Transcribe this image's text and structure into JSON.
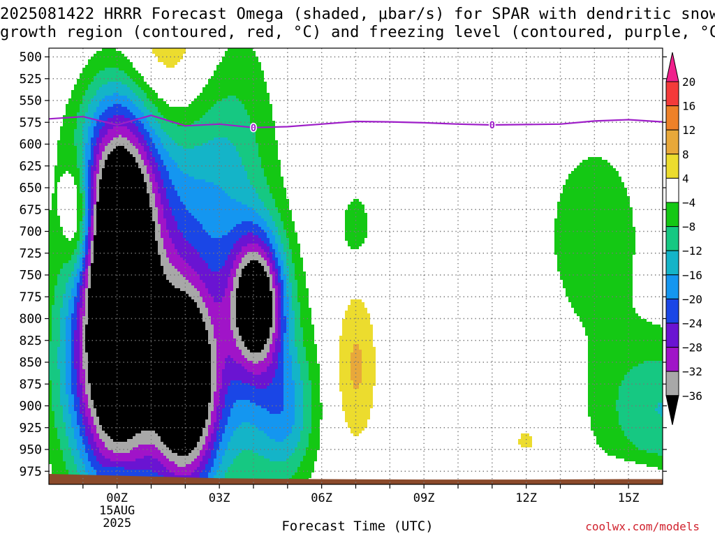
{
  "chart_data": {
    "type": "contour",
    "title": {
      "line1": "2025081422 HRRR Forecast Omega (shaded, μbar/s) for SPAR with dendritic snow",
      "line2": "growth region (contoured, red, °C) and freezing level (contoured, purple, °C)"
    },
    "xlabel": "Forecast Time (UTC)",
    "credit": "coolwx.com/models",
    "x_ticks": [
      {
        "hour": 0,
        "label": "00Z",
        "sub": [
          "15AUG",
          "2025"
        ]
      },
      {
        "hour": 3,
        "label": "03Z",
        "sub": []
      },
      {
        "hour": 6,
        "label": "06Z",
        "sub": []
      },
      {
        "hour": 9,
        "label": "09Z",
        "sub": []
      },
      {
        "hour": 12,
        "label": "12Z",
        "sub": []
      },
      {
        "hour": 15,
        "label": "15Z",
        "sub": []
      }
    ],
    "xlim": [
      -2,
      16
    ],
    "ylim": [
      990,
      490
    ],
    "y_ticks": [
      500,
      525,
      550,
      575,
      600,
      625,
      650,
      675,
      700,
      725,
      750,
      775,
      800,
      825,
      850,
      875,
      900,
      925,
      950,
      975
    ],
    "grid": true,
    "colorbar": {
      "labels": [
        "20",
        "16",
        "12",
        "8",
        "4",
        "−4",
        "−8",
        "−12",
        "−16",
        "−20",
        "−24",
        "−28",
        "−32",
        "−36"
      ],
      "levels": [
        {
          "lo": 20,
          "hi": 999,
          "color": "#f0208c",
          "arrow": "up"
        },
        {
          "lo": 16,
          "hi": 20,
          "color": "#f43a3a"
        },
        {
          "lo": 12,
          "hi": 16,
          "color": "#ee8128"
        },
        {
          "lo": 8,
          "hi": 12,
          "color": "#e8a83a"
        },
        {
          "lo": 4,
          "hi": 8,
          "color": "#ecdc2e"
        },
        {
          "lo": -4,
          "hi": 4,
          "color": "#ffffff"
        },
        {
          "lo": -8,
          "hi": -4,
          "color": "#14c814"
        },
        {
          "lo": -12,
          "hi": -8,
          "color": "#16c882"
        },
        {
          "lo": -16,
          "hi": -12,
          "color": "#14b4c8"
        },
        {
          "lo": -20,
          "hi": -16,
          "color": "#1496f0"
        },
        {
          "lo": -24,
          "hi": -20,
          "color": "#1a46e6"
        },
        {
          "lo": -28,
          "hi": -24,
          "color": "#6a14d2"
        },
        {
          "lo": -32,
          "hi": -28,
          "color": "#a014c8"
        },
        {
          "lo": -36,
          "hi": -32,
          "color": "#a8a8a8"
        },
        {
          "lo": -999,
          "hi": -36,
          "color": "#000000",
          "arrow": "down"
        }
      ]
    },
    "omega_features": [
      {
        "name": "upper-lift-band",
        "x": 0.8,
        "p": 640,
        "sx": 1.5,
        "sp": 130,
        "peak": -14
      },
      {
        "name": "early-lower-lift",
        "x": -0.4,
        "p": 870,
        "sx": 1.15,
        "sp": 85,
        "peak": -14
      },
      {
        "name": "core-00z",
        "x": 0.05,
        "p": 760,
        "sx": 0.82,
        "sp": 160,
        "peak": -48
      },
      {
        "name": "core-02z",
        "x": 2.0,
        "p": 880,
        "sx": 0.72,
        "sp": 90,
        "peak": -46
      },
      {
        "name": "core-04z",
        "x": 4.1,
        "p": 780,
        "sx": 0.55,
        "sp": 55,
        "peak": -36
      },
      {
        "name": "lift-03z-column",
        "x": 3.2,
        "p": 640,
        "sx": 1.0,
        "sp": 150,
        "peak": -11
      },
      {
        "name": "lift-04z-lower",
        "x": 4.2,
        "p": 880,
        "sx": 1.05,
        "sp": 95,
        "peak": -12
      },
      {
        "name": "lift-05z",
        "x": 5.0,
        "p": 910,
        "sx": 0.55,
        "sp": 50,
        "peak": -9
      },
      {
        "name": "lift-07z",
        "x": 7.0,
        "p": 695,
        "sx": 0.35,
        "sp": 30,
        "peak": -7
      },
      {
        "name": "lift-14z",
        "x": 14.0,
        "p": 705,
        "sx": 1.1,
        "sp": 85,
        "peak": -7
      },
      {
        "name": "lift-16z-lower",
        "x": 16.0,
        "p": 905,
        "sx": 1.4,
        "sp": 60,
        "peak": -12
      },
      {
        "name": "sink-01z-upper",
        "x": 0.95,
        "p": 500,
        "sx": 1.4,
        "sp": 75,
        "peak": 18
      },
      {
        "name": "sink-01z-lower",
        "x": -1.15,
        "p": 685,
        "sx": 0.33,
        "sp": 50,
        "peak": 17
      },
      {
        "name": "sink-07z",
        "x": 7.0,
        "p": 855,
        "sx": 0.45,
        "sp": 65,
        "peak": 9
      },
      {
        "name": "sink-12z",
        "x": 12.0,
        "p": 940,
        "sx": 0.25,
        "sp": 10,
        "peak": 6
      },
      {
        "name": "sink-15z",
        "x": 15.0,
        "p": 980,
        "sx": 0.9,
        "sp": 12,
        "peak": 5
      },
      {
        "name": "sink-00z-sfc",
        "x": 0.0,
        "p": 978,
        "sx": 0.3,
        "sp": 10,
        "peak": 5
      }
    ],
    "freezing_level": {
      "times": [
        -2.0,
        -1.0,
        0.0,
        1.0,
        2.0,
        3.0,
        4.0,
        5.0,
        6.0,
        7.0,
        8.0,
        9.0,
        10.0,
        11.0,
        12.0,
        13.0,
        14.0,
        15.0,
        16.0
      ],
      "pressure": [
        571.0,
        568.5,
        578.0,
        567.0,
        579.0,
        577.0,
        581.0,
        580.0,
        577.0,
        574.0,
        574.5,
        575.5,
        577.0,
        578.0,
        577.5,
        577.0,
        573.5,
        572.0,
        574.5
      ],
      "label_times": [
        4.0,
        11.0
      ],
      "label": "0",
      "color": "#9e1ec8"
    },
    "terrain": {
      "times": [
        -2.0,
        0.0,
        3.0,
        6.0,
        9.0,
        12.0,
        15.0,
        16.0
      ],
      "pressure": [
        978.0,
        980.0,
        983.0,
        984.0,
        984.5,
        984.5,
        984.0,
        984.0
      ],
      "color": "#8b4a2b"
    }
  }
}
